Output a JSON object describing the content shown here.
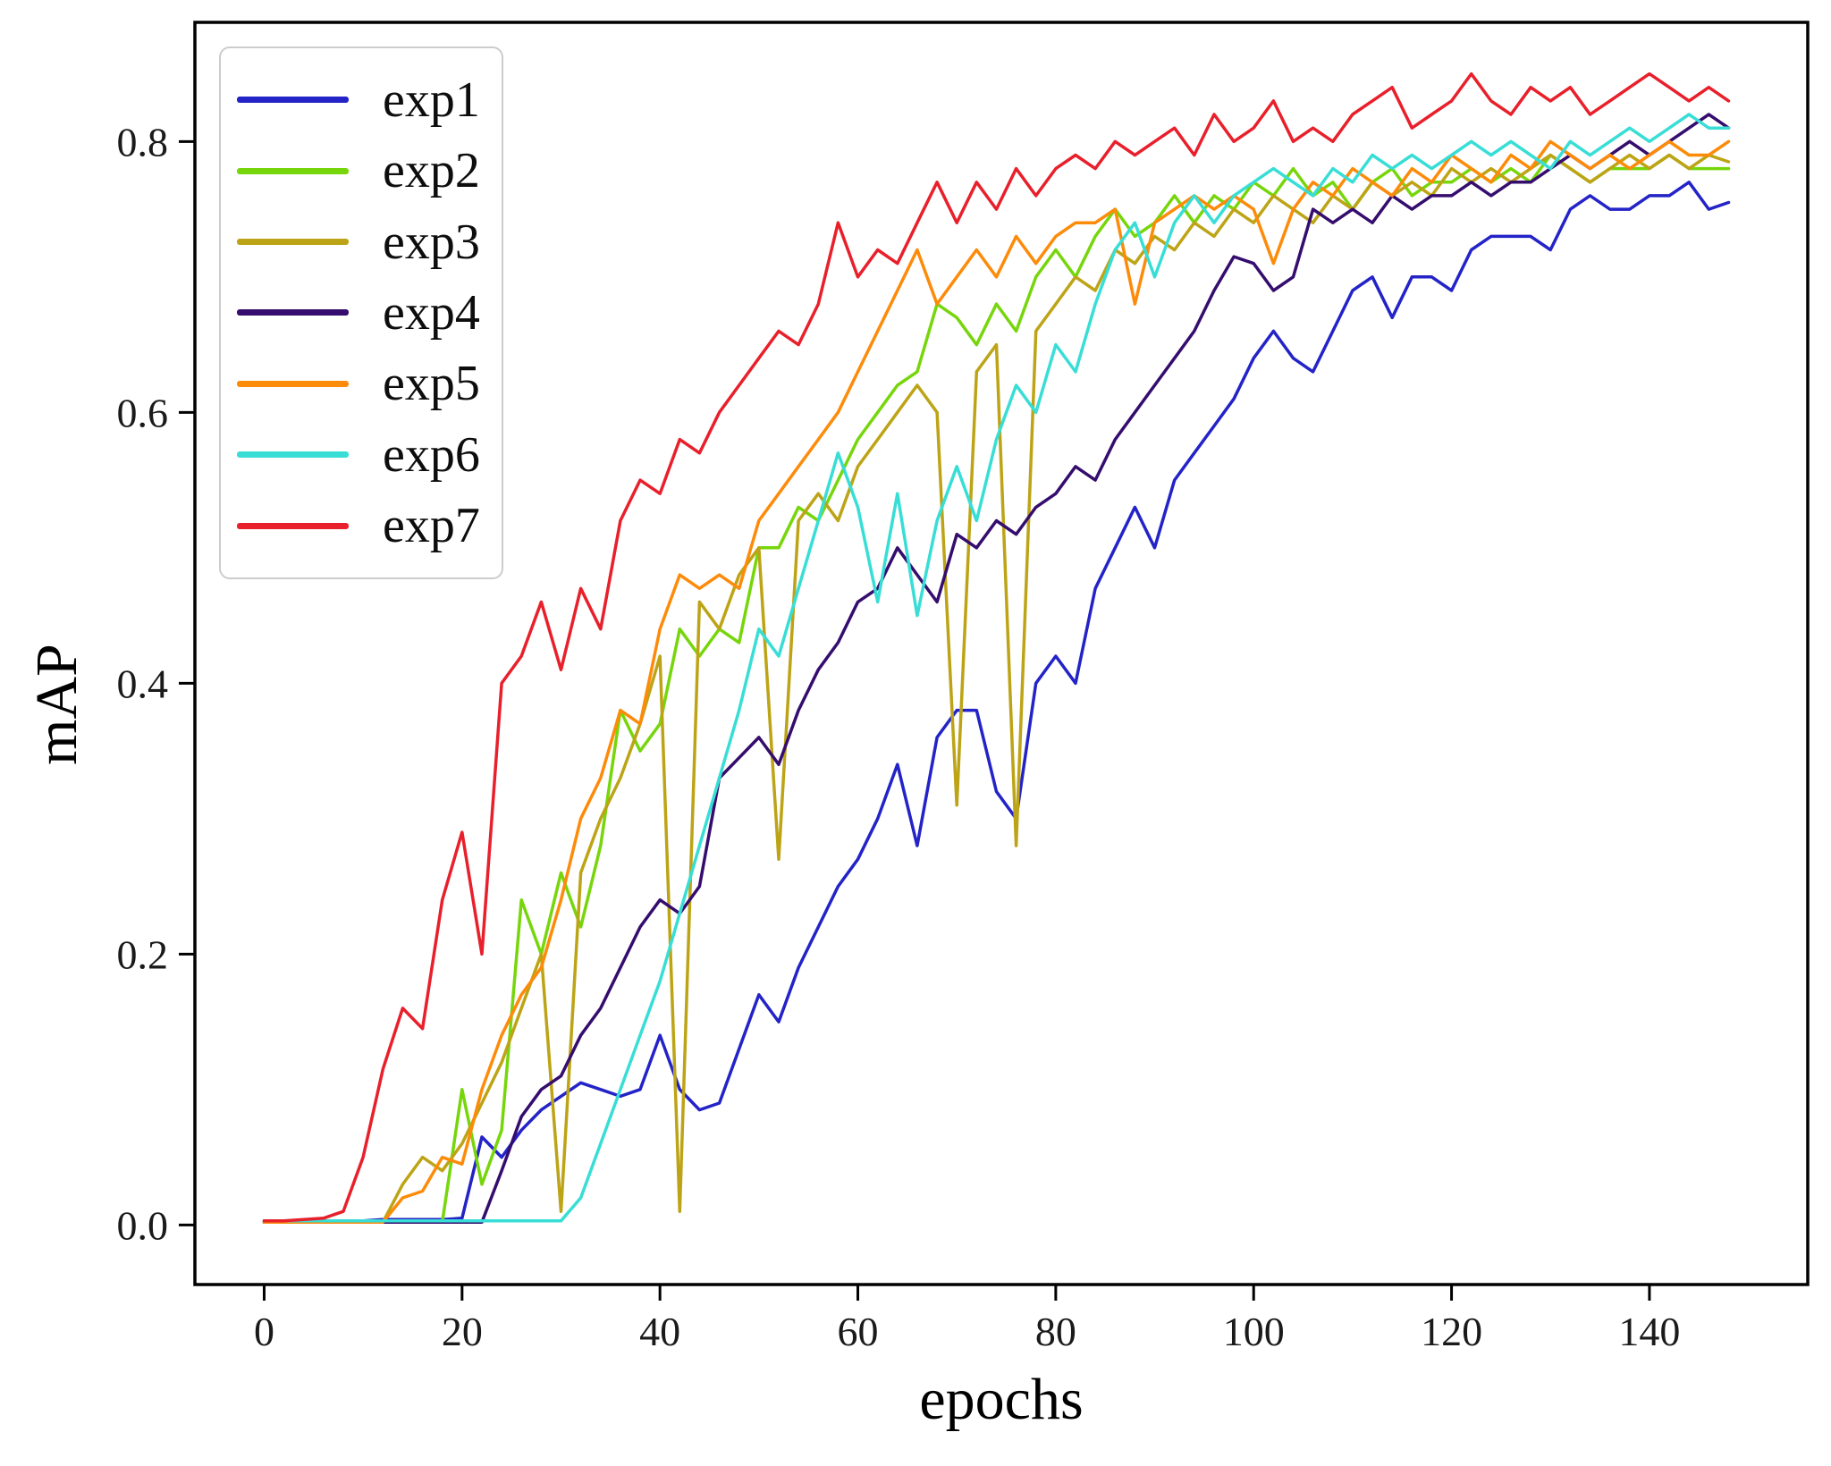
{
  "figure": {
    "background": "#ffffff",
    "spine_color": "#000000",
    "tick_color": "#000000",
    "tick_label_color": "#1a1a1a"
  },
  "chart_data": {
    "type": "line",
    "title": "",
    "xlabel": "epochs",
    "ylabel": "mAP",
    "grid": false,
    "legend_position": "upper left",
    "xlim": [
      -7,
      156
    ],
    "ylim": [
      -0.044,
      0.888
    ],
    "x_ticks": [
      0,
      20,
      40,
      60,
      80,
      100,
      120,
      140
    ],
    "x_tick_labels": [
      "0",
      "20",
      "40",
      "60",
      "80",
      "100",
      "120",
      "140"
    ],
    "y_ticks": [
      0.0,
      0.2,
      0.4,
      0.6,
      0.8
    ],
    "y_tick_labels": [
      "0.0",
      "0.2",
      "0.4",
      "0.6",
      "0.8"
    ],
    "x_start": 0,
    "x_step": 2,
    "series": [
      {
        "name": "exp1",
        "color": "#2323c8",
        "values": [
          0.003,
          0.003,
          0.003,
          0.003,
          0.003,
          0.003,
          0.004,
          0.004,
          0.004,
          0.004,
          0.005,
          0.065,
          0.05,
          0.07,
          0.085,
          0.095,
          0.105,
          0.1,
          0.095,
          0.1,
          0.14,
          0.1,
          0.085,
          0.09,
          0.13,
          0.17,
          0.15,
          0.19,
          0.22,
          0.25,
          0.27,
          0.3,
          0.34,
          0.28,
          0.36,
          0.38,
          0.38,
          0.32,
          0.3,
          0.4,
          0.42,
          0.4,
          0.47,
          0.5,
          0.53,
          0.5,
          0.55,
          0.57,
          0.59,
          0.61,
          0.64,
          0.66,
          0.64,
          0.63,
          0.66,
          0.69,
          0.7,
          0.67,
          0.7,
          0.7,
          0.69,
          0.72,
          0.73,
          0.73,
          0.73,
          0.72,
          0.75,
          0.76,
          0.75,
          0.75,
          0.76,
          0.76,
          0.77,
          0.75,
          0.755
        ]
      },
      {
        "name": "exp2",
        "color": "#77d60b",
        "values": [
          0.002,
          0.002,
          0.002,
          0.002,
          0.002,
          0.002,
          0.002,
          0.002,
          0.002,
          0.002,
          0.1,
          0.03,
          0.07,
          0.24,
          0.2,
          0.26,
          0.22,
          0.28,
          0.38,
          0.35,
          0.37,
          0.44,
          0.42,
          0.44,
          0.43,
          0.5,
          0.5,
          0.53,
          0.52,
          0.55,
          0.58,
          0.6,
          0.62,
          0.63,
          0.68,
          0.67,
          0.65,
          0.68,
          0.66,
          0.7,
          0.72,
          0.7,
          0.73,
          0.75,
          0.73,
          0.74,
          0.76,
          0.74,
          0.76,
          0.75,
          0.77,
          0.76,
          0.78,
          0.76,
          0.77,
          0.75,
          0.77,
          0.78,
          0.76,
          0.77,
          0.77,
          0.78,
          0.77,
          0.78,
          0.77,
          0.79,
          0.78,
          0.77,
          0.78,
          0.78,
          0.78,
          0.79,
          0.78,
          0.78,
          0.78
        ]
      },
      {
        "name": "exp3",
        "color": "#bda416",
        "values": [
          0.002,
          0.002,
          0.002,
          0.002,
          0.002,
          0.002,
          0.002,
          0.03,
          0.05,
          0.04,
          0.06,
          0.09,
          0.12,
          0.16,
          0.2,
          0.01,
          0.26,
          0.3,
          0.33,
          0.37,
          0.42,
          0.01,
          0.46,
          0.44,
          0.48,
          0.5,
          0.27,
          0.52,
          0.54,
          0.52,
          0.56,
          0.58,
          0.6,
          0.62,
          0.6,
          0.31,
          0.63,
          0.65,
          0.28,
          0.66,
          0.68,
          0.7,
          0.69,
          0.72,
          0.71,
          0.73,
          0.72,
          0.74,
          0.73,
          0.75,
          0.74,
          0.76,
          0.75,
          0.74,
          0.76,
          0.75,
          0.77,
          0.76,
          0.77,
          0.76,
          0.78,
          0.77,
          0.78,
          0.77,
          0.78,
          0.79,
          0.78,
          0.77,
          0.78,
          0.79,
          0.78,
          0.79,
          0.78,
          0.79,
          0.785
        ]
      },
      {
        "name": "exp4",
        "color": "#350d6e",
        "values": [
          0.002,
          0.002,
          0.002,
          0.002,
          0.002,
          0.002,
          0.002,
          0.002,
          0.002,
          0.002,
          0.002,
          0.002,
          0.04,
          0.08,
          0.1,
          0.11,
          0.14,
          0.16,
          0.19,
          0.22,
          0.24,
          0.23,
          0.25,
          0.33,
          0.345,
          0.36,
          0.34,
          0.38,
          0.41,
          0.43,
          0.46,
          0.47,
          0.5,
          0.48,
          0.46,
          0.51,
          0.5,
          0.52,
          0.51,
          0.53,
          0.54,
          0.56,
          0.55,
          0.58,
          0.6,
          0.62,
          0.64,
          0.66,
          0.69,
          0.715,
          0.71,
          0.69,
          0.7,
          0.75,
          0.74,
          0.75,
          0.74,
          0.76,
          0.75,
          0.76,
          0.76,
          0.77,
          0.76,
          0.77,
          0.77,
          0.78,
          0.79,
          0.78,
          0.79,
          0.8,
          0.79,
          0.8,
          0.81,
          0.82,
          0.81
        ]
      },
      {
        "name": "exp5",
        "color": "#fd8b0a",
        "values": [
          0.002,
          0.002,
          0.002,
          0.002,
          0.002,
          0.002,
          0.002,
          0.02,
          0.025,
          0.05,
          0.045,
          0.1,
          0.14,
          0.17,
          0.19,
          0.24,
          0.3,
          0.33,
          0.38,
          0.37,
          0.44,
          0.48,
          0.47,
          0.48,
          0.47,
          0.52,
          0.54,
          0.56,
          0.58,
          0.6,
          0.63,
          0.66,
          0.69,
          0.72,
          0.68,
          0.7,
          0.72,
          0.7,
          0.73,
          0.71,
          0.73,
          0.74,
          0.74,
          0.75,
          0.68,
          0.74,
          0.75,
          0.76,
          0.75,
          0.76,
          0.75,
          0.71,
          0.75,
          0.77,
          0.76,
          0.78,
          0.77,
          0.76,
          0.78,
          0.77,
          0.79,
          0.78,
          0.77,
          0.79,
          0.78,
          0.8,
          0.79,
          0.78,
          0.79,
          0.78,
          0.79,
          0.8,
          0.79,
          0.79,
          0.8
        ]
      },
      {
        "name": "exp6",
        "color": "#38ded6",
        "values": [
          0.003,
          0.003,
          0.003,
          0.003,
          0.003,
          0.003,
          0.003,
          0.003,
          0.003,
          0.003,
          0.003,
          0.003,
          0.003,
          0.003,
          0.003,
          0.003,
          0.02,
          0.06,
          0.1,
          0.14,
          0.18,
          0.23,
          0.28,
          0.33,
          0.38,
          0.44,
          0.42,
          0.47,
          0.52,
          0.57,
          0.53,
          0.46,
          0.54,
          0.45,
          0.52,
          0.56,
          0.52,
          0.58,
          0.62,
          0.6,
          0.65,
          0.63,
          0.68,
          0.72,
          0.74,
          0.7,
          0.74,
          0.76,
          0.74,
          0.76,
          0.77,
          0.78,
          0.77,
          0.76,
          0.78,
          0.77,
          0.79,
          0.78,
          0.79,
          0.78,
          0.79,
          0.8,
          0.79,
          0.8,
          0.79,
          0.78,
          0.8,
          0.79,
          0.8,
          0.81,
          0.8,
          0.81,
          0.82,
          0.81,
          0.81
        ]
      },
      {
        "name": "exp7",
        "color": "#e8202b",
        "values": [
          0.003,
          0.003,
          0.004,
          0.005,
          0.01,
          0.05,
          0.115,
          0.16,
          0.145,
          0.24,
          0.29,
          0.2,
          0.4,
          0.42,
          0.46,
          0.41,
          0.47,
          0.44,
          0.52,
          0.55,
          0.54,
          0.58,
          0.57,
          0.6,
          0.62,
          0.64,
          0.66,
          0.65,
          0.68,
          0.74,
          0.7,
          0.72,
          0.71,
          0.74,
          0.77,
          0.74,
          0.77,
          0.75,
          0.78,
          0.76,
          0.78,
          0.79,
          0.78,
          0.8,
          0.79,
          0.8,
          0.81,
          0.79,
          0.82,
          0.8,
          0.81,
          0.83,
          0.8,
          0.81,
          0.8,
          0.82,
          0.83,
          0.84,
          0.81,
          0.82,
          0.83,
          0.85,
          0.83,
          0.82,
          0.84,
          0.83,
          0.84,
          0.82,
          0.83,
          0.84,
          0.85,
          0.84,
          0.83,
          0.84,
          0.83
        ]
      }
    ]
  }
}
